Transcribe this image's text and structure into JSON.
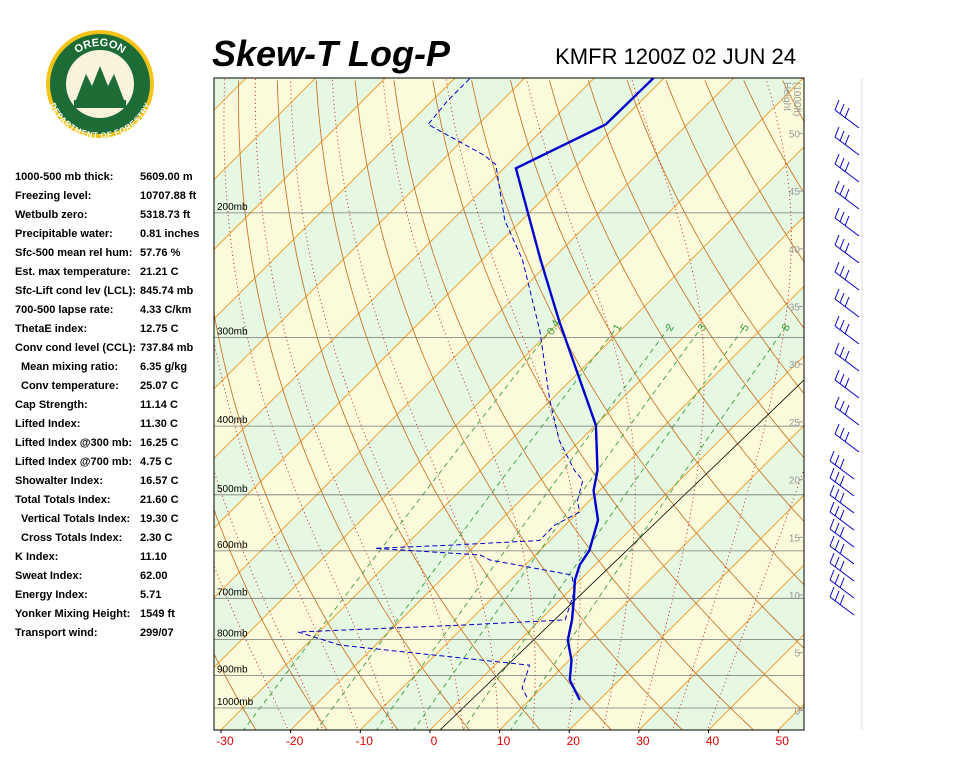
{
  "logo": {
    "top": "OREGON",
    "bottom": "DEPARTMENT OF FORESTRY"
  },
  "stats": [
    {
      "label": "1000-500 mb thick:",
      "value": "5609.00 m"
    },
    {
      "label": "Freezing level:",
      "value": "10707.88 ft"
    },
    {
      "label": "Wetbulb zero:",
      "value": "5318.73 ft"
    },
    {
      "label": "Precipitable water:",
      "value": "0.81 inches"
    },
    {
      "label": "Sfc-500 mean rel hum:",
      "value": "57.76 %"
    },
    {
      "label": "Est. max temperature:",
      "value": "21.21 C"
    },
    {
      "label": "Sfc-Lift cond lev (LCL):",
      "value": "845.74 mb"
    },
    {
      "label": "700-500 lapse rate:",
      "value": "4.33 C/km"
    },
    {
      "label": "ThetaE index:",
      "value": "12.75 C"
    },
    {
      "label": "Conv cond level (CCL):",
      "value": "737.84 mb"
    },
    {
      "label": "Mean mixing ratio:",
      "value": "6.35 g/kg"
    },
    {
      "label": "Conv temperature:",
      "value": "25.07 C"
    },
    {
      "label": "Cap Strength:",
      "value": "11.14 C"
    },
    {
      "label": "Lifted Index:",
      "value": "11.30 C"
    },
    {
      "label": "Lifted Index @300 mb:",
      "value": "16.25 C"
    },
    {
      "label": "Lifted Index @700 mb:",
      "value": "4.75 C"
    },
    {
      "label": "Showalter Index:",
      "value": "16.57 C"
    },
    {
      "label": "Total Totals Index:",
      "value": "21.60 C"
    },
    {
      "label": "Vertical Totals Index:",
      "value": "19.30 C"
    },
    {
      "label": "Cross Totals Index:",
      "value": "2.30 C"
    },
    {
      "label": "K Index:",
      "value": "11.10"
    },
    {
      "label": "Sweat Index:",
      "value": "62.00"
    },
    {
      "label": "Energy Index:",
      "value": "5.71"
    },
    {
      "label": "Yonker Mixing Height:",
      "value": "1549 ft"
    },
    {
      "label": "Transport wind:",
      "value": "299/07"
    }
  ],
  "chart_data": {
    "type": "skewt",
    "title": "Skew-T Log-P",
    "subtitle": "KMFR 1200Z 02 JUN 24",
    "xlim": [
      -31,
      53.7
    ],
    "xticks": [
      -30,
      -20,
      -10,
      0,
      10,
      20,
      30,
      40,
      50
    ],
    "plim": [
      1074,
      129
    ],
    "pticks": [
      {
        "value": 1000,
        "label": "1000mb"
      },
      {
        "value": 900,
        "label": "900mb"
      },
      {
        "value": 800,
        "label": "800mb"
      },
      {
        "value": 700,
        "label": "700mb"
      },
      {
        "value": 600,
        "label": "600mb"
      },
      {
        "value": 500,
        "label": "500mb"
      },
      {
        "value": 400,
        "label": "400mb"
      },
      {
        "value": 300,
        "label": "300mb"
      },
      {
        "value": 200,
        "label": "200mb"
      }
    ],
    "height_label": [
      "Height",
      "(1000ft)"
    ],
    "hlim": [
      -1.7,
      54.8
    ],
    "hticks": [
      0,
      5,
      10,
      15,
      20,
      25,
      30,
      35,
      40,
      45,
      50
    ],
    "mixing_ratio_ticks": [
      0.4,
      1,
      2,
      3,
      5,
      8
    ],
    "series": [
      {
        "color": "#0000cc",
        "pressure": [
          974,
          913,
          856,
          802,
          751,
          704,
          660,
          628,
          599,
          543,
          493,
          462,
          399,
          284,
          233,
          173,
          150,
          129
        ],
        "values": [
          17.2,
          12.9,
          10.3,
          6.9,
          4.6,
          2.0,
          -0.7,
          -2.2,
          -2.9,
          -6.0,
          -10.9,
          -13.2,
          -19.9,
          -40.2,
          -51.6,
          -68.3,
          -61.7,
          -61.5
        ]
      },
      {
        "color": "#0000cc",
        "pressure": [
          965,
          937,
          870,
          815,
          781,
          764,
          751,
          716,
          682,
          649,
          618,
          608,
          595,
          589,
          580,
          552,
          529,
          509,
          477,
          462,
          419,
          368,
          293,
          233,
          205,
          171,
          166,
          150,
          139,
          129
        ],
        "values": [
          9.2,
          7.2,
          5.0,
          -25.1,
          -33.0,
          -10.8,
          3.6,
          2.2,
          0.7,
          -1.9,
          -15.8,
          -17.9,
          -34.0,
          -23.7,
          -11.5,
          -11.5,
          -9.8,
          -11.8,
          -13.9,
          -16.5,
          -23.0,
          -30.1,
          -41.6,
          -54.2,
          -62.4,
          -71.7,
          -74.6,
          -87.2,
          -87.8,
          -87.8
        ]
      }
    ]
  }
}
